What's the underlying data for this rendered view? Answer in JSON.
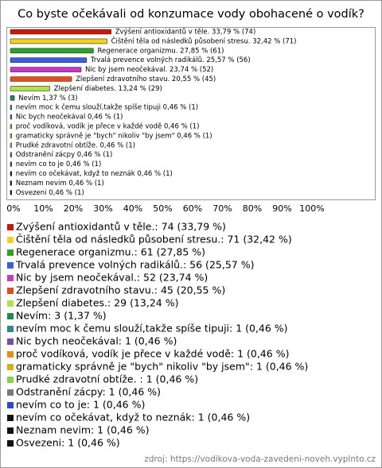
{
  "chart_data": {
    "type": "bar",
    "orientation": "horizontal",
    "title": "Co byste očekávali od konzumace vody obohacené o vodík?",
    "values": [
      33.79,
      32.42,
      27.85,
      25.57,
      23.74,
      20.55,
      13.24,
      1.37,
      0.46,
      0.46,
      0.46,
      0.46,
      0.46,
      0.46,
      0.46,
      0.46,
      0.46,
      0.46
    ],
    "value_labels": [
      "Zvýšení antioxidantů v těle. 33,79 % (74)",
      "Čištění těla od následků působení stresu. 32,42 % (71)",
      "Regenerace organizmu. 27,85 % (61)",
      "Trvalá prevence volných radikálů. 25,57 % (56)",
      "Nic by jsem neočekával. 23,74 % (52)",
      "Zlepšení zdravotního stavu. 20,55 % (45)",
      "Zlepšení diabetes. 13,24 % (29)",
      "Nevím 1,37 % (3)",
      "nevím moc k čemu slouží,takže spíše tipuji 0,46 % (1)",
      "Nic bych neočekával 0,46 % (1)",
      "proč vodíková, vodík je přece v každé vodě 0,46 % (1)",
      "gramaticky správně je \"bych\" nikoliv \"by jsem\" 0,46 % (1)",
      "Prudké zdravotní obtíže. 0,46 % (1)",
      "Odstranění zácpy 0,46 % (1)",
      "nevím co to je 0,46 % (1)",
      "nevím co očekávat, když to neznák 0,46 % (1)",
      "Neznam nevim 0,46 % (1)",
      "Osvezeni 0,46 % (1)"
    ],
    "legend": [
      "Zvýšení antioxidantů v těle.: 74 (33,79 %)",
      "Čištění těla od následků působení stresu.: 71 (32,42 %)",
      "Regenerace organizmu.: 61 (27,85 %)",
      "Trvalá prevence volných radikálů.: 56 (25,57 %)",
      "Nic by jsem neočekával.: 52 (23,74 %)",
      "Zlepšení zdravotního stavu.: 45 (20,55 %)",
      "Zlepšení diabetes.: 29 (13,24 %)",
      "Nevím: 3 (1,37 %)",
      "nevím moc k čemu slouží,takže spíše tipuji: 1 (0,46 %)",
      "Nic bych neočekával: 1 (0,46 %)",
      "proč vodíková, vodík je přece v každé vodě: 1 (0,46 %)",
      "gramaticky správně je \"bych\" nikoliv \"by jsem\": 1 (0,46 %)",
      "Prudké zdravotní obtíže. : 1 (0,46 %)",
      "Odstranění zácpy: 1 (0,46 %)",
      "nevím co to je: 1 (0,46 %)",
      "nevím co očekávat, když to neznák: 1 (0,46 %)",
      "Neznam nevim: 1 (0,46 %)",
      "Osvezeni: 1 (0,46 %)"
    ],
    "colors": [
      "#c41a0a",
      "#f2d21a",
      "#2aa52a",
      "#3a5ee0",
      "#c838c8",
      "#e84a18",
      "#b4e04a",
      "#1e8a50",
      "#2a8a8a",
      "#7a4ab0",
      "#f08a10",
      "#d4b010",
      "#8ad04a",
      "#7a7a7a",
      "#2a4ad0",
      "#111111",
      "#111111",
      "#111111"
    ],
    "xlim": [
      0,
      100
    ],
    "xticks": [
      {
        "value": 0,
        "label": "0%"
      },
      {
        "value": 10,
        "label": "10%"
      },
      {
        "value": 20,
        "label": "20%"
      },
      {
        "value": 30,
        "label": "30%"
      },
      {
        "value": 40,
        "label": "40%"
      },
      {
        "value": 50,
        "label": "50%"
      },
      {
        "value": 60,
        "label": "60%"
      },
      {
        "value": 70,
        "label": "70%"
      },
      {
        "value": 80,
        "label": "80%"
      },
      {
        "value": 90,
        "label": "90%"
      },
      {
        "value": 100,
        "label": "100%"
      }
    ],
    "source": "zdroj: https://vodikova-voda-zavedeni-noveh.vyplnto.cz"
  }
}
